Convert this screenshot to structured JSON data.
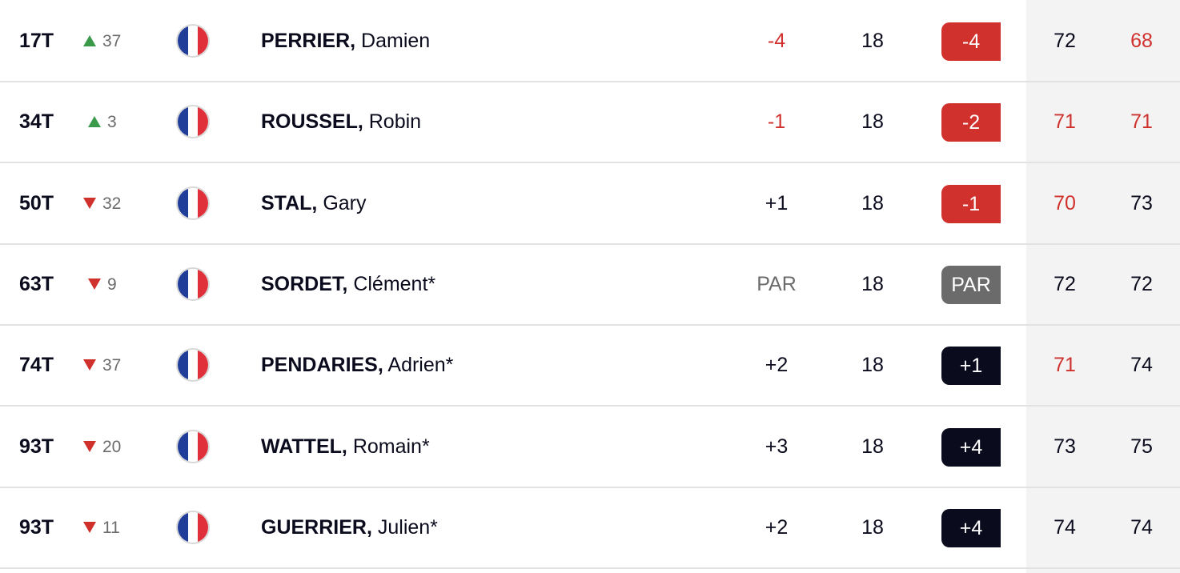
{
  "leaderboard": {
    "rows": [
      {
        "pos": "17T",
        "move": {
          "direction": "up",
          "amount": "37"
        },
        "last": "PERRIER,",
        "first": "Damien",
        "today": "-4",
        "thru": "18",
        "total": "-4",
        "rounds": [
          {
            "score": "72",
            "color": "black"
          },
          {
            "score": "68",
            "color": "red"
          }
        ]
      },
      {
        "pos": "34T",
        "move": {
          "direction": "up",
          "amount": "3"
        },
        "last": "ROUSSEL,",
        "first": "Robin",
        "today": "-1",
        "thru": "18",
        "total": "-2",
        "rounds": [
          {
            "score": "71",
            "color": "red"
          },
          {
            "score": "71",
            "color": "red"
          }
        ]
      },
      {
        "pos": "50T",
        "move": {
          "direction": "down",
          "amount": "32"
        },
        "last": "STAL,",
        "first": "Gary",
        "today": "+1",
        "thru": "18",
        "total": "-1",
        "rounds": [
          {
            "score": "70",
            "color": "red"
          },
          {
            "score": "73",
            "color": "black"
          }
        ]
      },
      {
        "pos": "63T",
        "move": {
          "direction": "down",
          "amount": "9"
        },
        "last": "SORDET,",
        "first": "Clément*",
        "today": "PAR",
        "thru": "18",
        "total": "PAR",
        "rounds": [
          {
            "score": "72",
            "color": "black"
          },
          {
            "score": "72",
            "color": "black"
          }
        ]
      },
      {
        "pos": "74T",
        "move": {
          "direction": "down",
          "amount": "37"
        },
        "last": "PENDARIES,",
        "first": "Adrien*",
        "today": "+2",
        "thru": "18",
        "total": "+1",
        "rounds": [
          {
            "score": "71",
            "color": "red"
          },
          {
            "score": "74",
            "color": "black"
          }
        ]
      },
      {
        "pos": "93T",
        "move": {
          "direction": "down",
          "amount": "20"
        },
        "last": "WATTEL,",
        "first": "Romain*",
        "today": "+3",
        "thru": "18",
        "total": "+4",
        "rounds": [
          {
            "score": "73",
            "color": "black"
          },
          {
            "score": "75",
            "color": "black"
          }
        ]
      },
      {
        "pos": "93T",
        "move": {
          "direction": "down",
          "amount": "11"
        },
        "last": "GUERRIER,",
        "first": "Julien*",
        "today": "+2",
        "thru": "18",
        "total": "+4",
        "rounds": [
          {
            "score": "74",
            "color": "black"
          },
          {
            "score": "74",
            "color": "black"
          }
        ]
      }
    ]
  }
}
